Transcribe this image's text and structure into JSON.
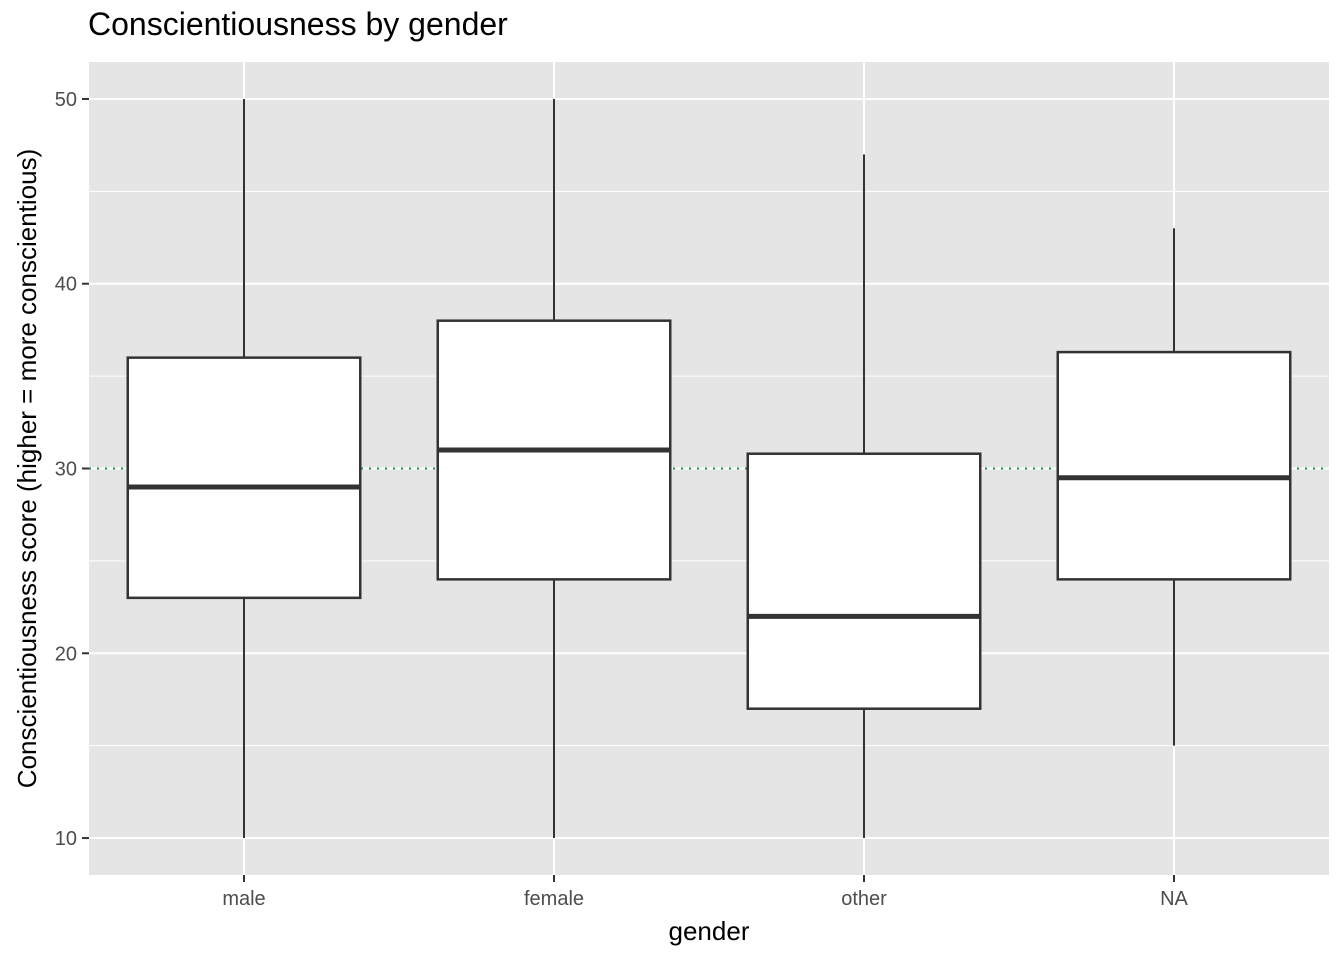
{
  "chart_data": {
    "type": "boxplot",
    "title": "Conscientiousness by gender",
    "xlabel": "gender",
    "ylabel": "Conscientiousness score (higher = more conscientious)",
    "categories": [
      "male",
      "female",
      "other",
      "NA"
    ],
    "boxes": [
      {
        "category": "male",
        "min": 10,
        "q1": 23,
        "median": 29,
        "q3": 36,
        "max": 50
      },
      {
        "category": "female",
        "min": 10,
        "q1": 24,
        "median": 31,
        "q3": 38,
        "max": 50
      },
      {
        "category": "other",
        "min": 10,
        "q1": 17,
        "median": 22,
        "q3": 30.8,
        "max": 47
      },
      {
        "category": "NA",
        "min": 15,
        "q1": 24,
        "median": 29.5,
        "q3": 36.3,
        "max": 43
      }
    ],
    "reference_line": {
      "y": 30,
      "style": "dotted",
      "color": "#1a9850"
    },
    "ylim": [
      8,
      52
    ],
    "yticks": [
      10,
      20,
      30,
      40,
      50
    ],
    "grid": true,
    "colors": {
      "panel": "#e5e5e5",
      "grid": "#ffffff",
      "box_fill": "#ffffff",
      "box_stroke": "#333333"
    }
  }
}
